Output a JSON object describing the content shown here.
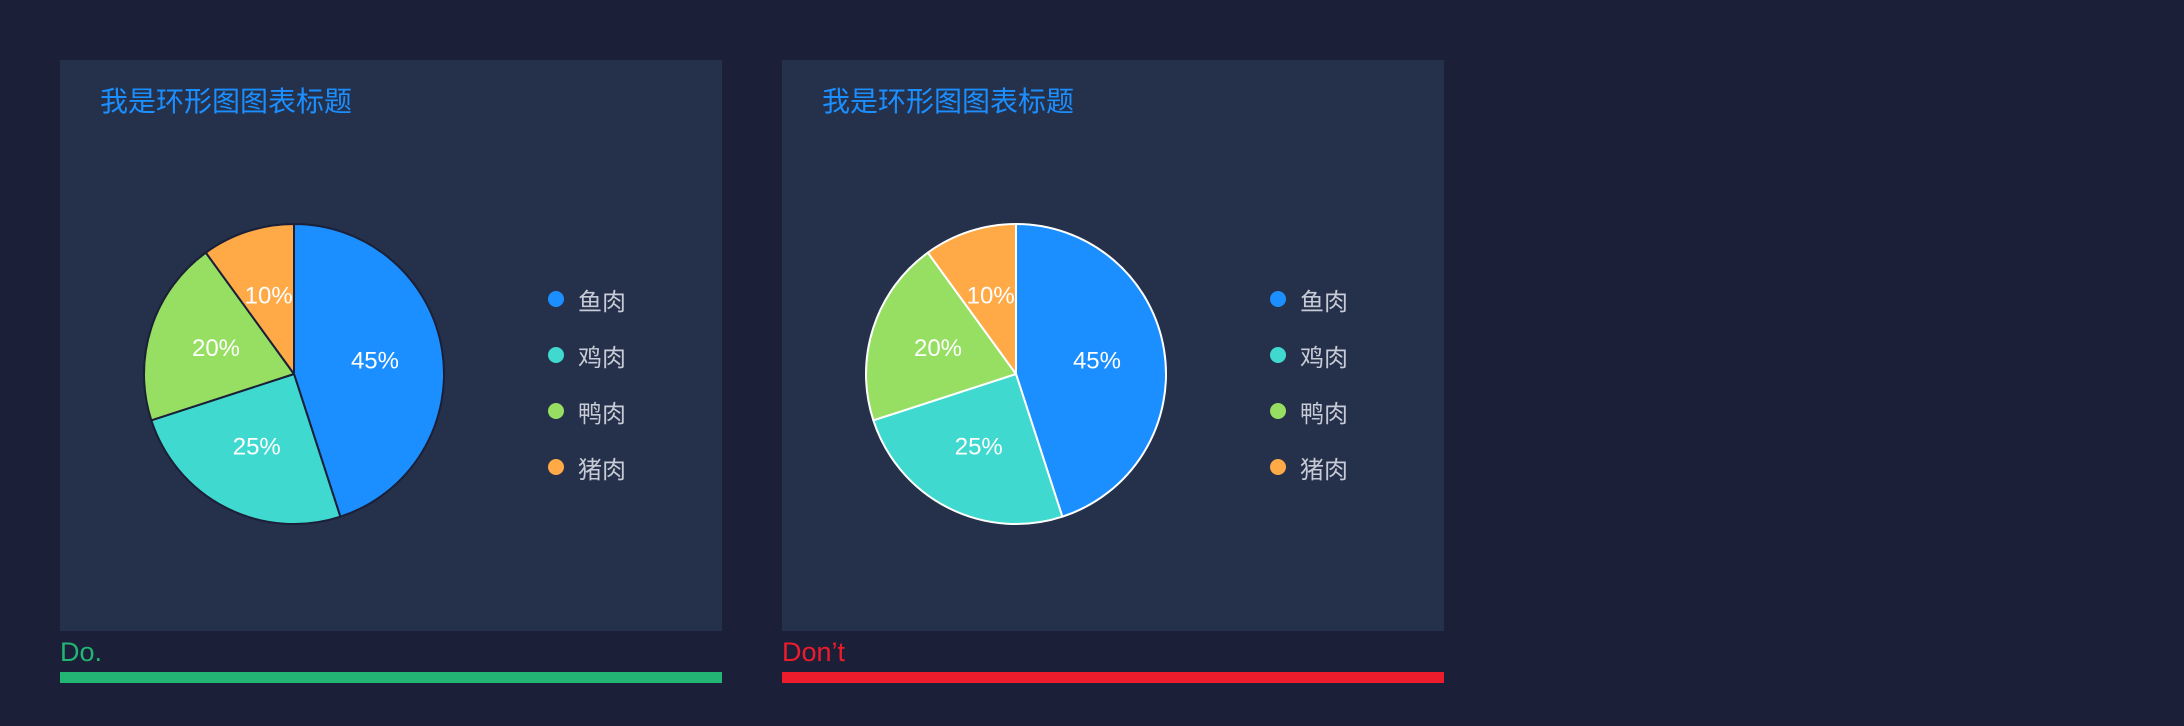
{
  "colors": {
    "title": "#1b8fff",
    "do": "#22b573",
    "dont": "#ed1c2c"
  },
  "panels": [
    {
      "title": "我是环形图图表标题",
      "verdict": "Do.",
      "verdict_color": "#22b573",
      "separator_color": "#1b1f38"
    },
    {
      "title": "我是环形图图表标题",
      "verdict": "Don’t",
      "verdict_color": "#ed1c2c",
      "separator_color": "#ffffff"
    }
  ],
  "chart_data": [
    {
      "type": "pie",
      "title": "我是环形图图表标题",
      "legend_position": "right",
      "series": [
        {
          "name": "鱼肉",
          "value": 45,
          "label": "45%",
          "color": "#1b8fff"
        },
        {
          "name": "鸡肉",
          "value": 25,
          "label": "25%",
          "color": "#40d9cf"
        },
        {
          "name": "鸭肉",
          "value": 20,
          "label": "20%",
          "color": "#97df62"
        },
        {
          "name": "猪肉",
          "value": 10,
          "label": "10%",
          "color": "#ffa947"
        }
      ]
    },
    {
      "type": "pie",
      "title": "我是环形图图表标题",
      "legend_position": "right",
      "series": [
        {
          "name": "鱼肉",
          "value": 45,
          "label": "45%",
          "color": "#1b8fff"
        },
        {
          "name": "鸡肉",
          "value": 25,
          "label": "25%",
          "color": "#40d9cf"
        },
        {
          "name": "鸭肉",
          "value": 20,
          "label": "20%",
          "color": "#97df62"
        },
        {
          "name": "猪肉",
          "value": 10,
          "label": "10%",
          "color": "#ffa947"
        }
      ]
    }
  ]
}
